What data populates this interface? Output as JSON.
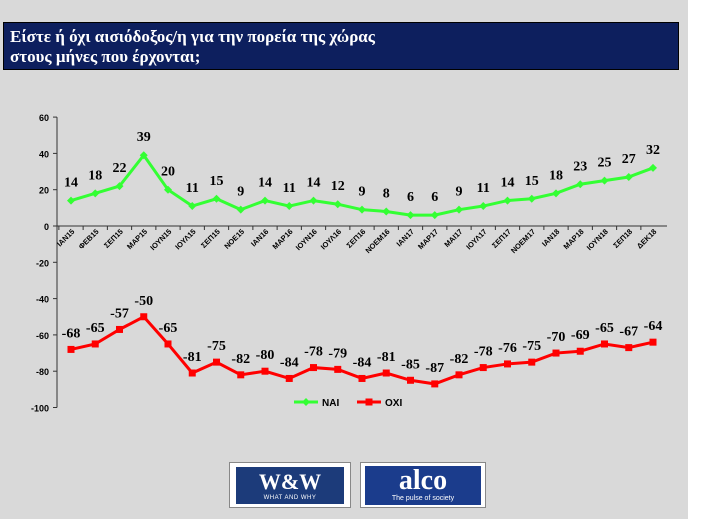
{
  "title": {
    "line1": "Είστε ή όχι αισιόδοξος/η για την πορεία της χώρας",
    "line2": "στους μήνες που έρχονται;"
  },
  "logos": {
    "ww_main": "W&W",
    "ww_sub": "WHAT AND WHY",
    "alco_name": "alco",
    "alco_tag": "The pulse of society"
  },
  "colors": {
    "yes": "#33ff33",
    "no": "#ff0000",
    "title_bg": "#0d1f5e",
    "background": "#d9d9d9"
  },
  "chart_data": {
    "type": "line",
    "title": "",
    "xlabel": "",
    "ylabel": "",
    "ylim": [
      -100,
      60
    ],
    "yticks": [
      60,
      40,
      20,
      0,
      -20,
      -40,
      -60,
      -80,
      -100
    ],
    "grid": false,
    "legend": "bottom-center",
    "categories": [
      "ΙΑΝ15",
      "ΦΕΒ15",
      "ΣΕΠ15",
      "ΜΑΡ15",
      "ΙΟΥΝ15",
      "ΙΟΥΛ15",
      "ΣΕΠ15",
      "ΝΟΕ15",
      "ΙΑΝ16",
      "ΜΑΡ16",
      "ΙΟΥΝ16",
      "ΙΟΥΛ16",
      "ΣΕΠ16",
      "ΝΟΕΜ16",
      "ΙΑΝ17",
      "ΜΑΡ17",
      "ΜΑΙ17",
      "ΙΟΥΛ17",
      "ΣΕΠ17",
      "ΝΟΕΜ17",
      "ΙΑΝ18",
      "ΜΑΡ18",
      "ΙΟΥΝ18",
      "ΣΕΠ18",
      "ΔΕΚ18"
    ],
    "series": [
      {
        "name": "ΝΑΙ",
        "color": "#33ff33",
        "values": [
          14,
          18,
          22,
          39,
          20,
          11,
          15,
          9,
          14,
          11,
          14,
          12,
          9,
          8,
          6,
          6,
          9,
          11,
          14,
          15,
          18,
          23,
          25,
          27,
          32
        ],
        "labels": [
          "14",
          "18",
          "22",
          "39",
          "20",
          "11",
          "15",
          "9",
          "14",
          "11",
          "14",
          "12",
          "9",
          "8",
          "6",
          "6",
          "9",
          "11",
          "14",
          "15",
          "18",
          "23",
          "25",
          "27",
          "32"
        ]
      },
      {
        "name": "ΟΧΙ",
        "color": "#ff0000",
        "values": [
          -68,
          -65,
          -57,
          -50,
          -65,
          -81,
          -75,
          -82,
          -80,
          -84,
          -78,
          -79,
          -84,
          -81,
          -85,
          -87,
          -82,
          -78,
          -76,
          -75,
          -70,
          -69,
          -65,
          -67,
          -64
        ],
        "labels": [
          "-68",
          "-65",
          "-57",
          "-50",
          "-65",
          "-81",
          "-75",
          "-82",
          "-80",
          "-84",
          "-78",
          "-79",
          "-84",
          "-81",
          "-85",
          "-87",
          "-82",
          "-78",
          "-76",
          "-75",
          "-70",
          "-69",
          "-65",
          "-67",
          "-64"
        ]
      }
    ]
  }
}
